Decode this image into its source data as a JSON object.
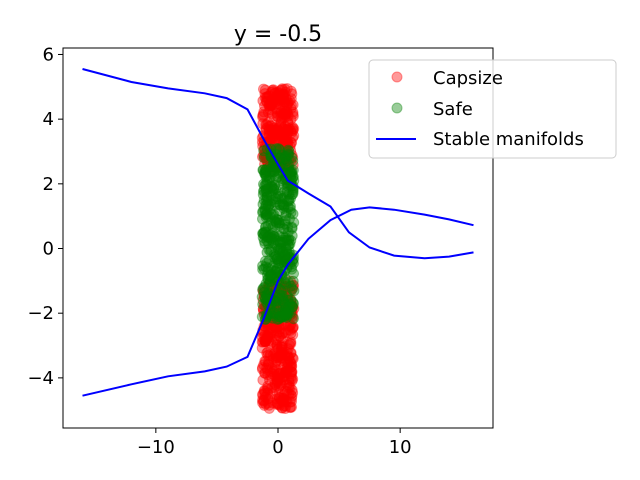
{
  "chart_data": {
    "type": "scatter",
    "title": "y = -0.5",
    "xlabel": "",
    "ylabel": "",
    "xlim": [
      -17.6,
      17.6
    ],
    "ylim": [
      -5.55,
      6.2
    ],
    "xticks": [
      -10,
      0,
      10
    ],
    "xtick_labels": [
      "−10",
      "0",
      "10"
    ],
    "yticks": [
      -4,
      -2,
      0,
      2,
      4,
      6
    ],
    "ytick_labels": [
      "−4",
      "−2",
      "0",
      "2",
      "4",
      "6"
    ],
    "grid": false,
    "legend_position": "top-right",
    "colors": {
      "capsize": "#ff0000",
      "safe": "#008000",
      "manifold": "#0000ff",
      "axis": "#000000"
    },
    "series": [
      {
        "name": "Capsize",
        "kind": "scatter",
        "color": "#ff0000",
        "alpha": 0.4,
        "x_range": [
          -1.3,
          1.3
        ],
        "segments": [
          {
            "y_range": [
              2.5,
              4.95
            ],
            "count": 260
          },
          {
            "y_range": [
              -4.95,
              -1.0
            ],
            "count": 360
          }
        ]
      },
      {
        "name": "Safe",
        "kind": "scatter",
        "color": "#008000",
        "alpha": 0.4,
        "x_range": [
          -1.3,
          1.3
        ],
        "segments": [
          {
            "y_range": [
              -2.2,
              3.1
            ],
            "count": 420
          }
        ]
      },
      {
        "name": "Stable manifolds",
        "kind": "line",
        "color": "#0000ff",
        "lines": [
          {
            "x": [
              -16,
              -12,
              -9,
              -6,
              -4.2,
              -2.5,
              -1.2,
              0,
              0.8,
              2.5,
              4.3,
              5.8,
              7.5,
              9.5,
              12,
              14,
              16
            ],
            "y": [
              5.55,
              5.15,
              4.95,
              4.8,
              4.65,
              4.3,
              3.4,
              2.6,
              2.1,
              1.7,
              1.3,
              0.5,
              0.03,
              -0.22,
              -0.3,
              -0.25,
              -0.12
            ]
          },
          {
            "x": [
              -16,
              -12,
              -9,
              -6,
              -4.2,
              -2.5,
              -1.2,
              0,
              0.8,
              2.5,
              4.3,
              6,
              7.5,
              9.5,
              12,
              14,
              16
            ],
            "y": [
              -4.55,
              -4.2,
              -3.95,
              -3.8,
              -3.65,
              -3.35,
              -2.2,
              -1.0,
              -0.5,
              0.3,
              0.88,
              1.2,
              1.27,
              1.2,
              1.05,
              0.9,
              0.72
            ]
          }
        ]
      }
    ]
  }
}
